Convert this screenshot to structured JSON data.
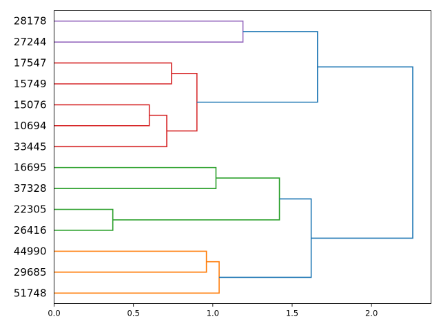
{
  "chart_data": {
    "type": "dendrogram",
    "orientation": "left",
    "xlim": [
      0,
      2.375
    ],
    "xticks": [
      0.0,
      0.5,
      1.0,
      1.5,
      2.0
    ],
    "xtick_labels": [
      "0.0",
      "0.5",
      "1.0",
      "1.5",
      "2.0"
    ],
    "leaves": [
      "28178",
      "27244",
      "17547",
      "15749",
      "15076",
      "10694",
      "33445",
      "16695",
      "37328",
      "22305",
      "26416",
      "44990",
      "29685",
      "51748"
    ],
    "colors": {
      "purple": "#9467bd",
      "red": "#d62728",
      "green": "#2ca02c",
      "orange": "#ff7f0e",
      "blue": "#1f77b4"
    },
    "merges": [
      {
        "id": "m1",
        "a": "L:28178",
        "b": "L:27244",
        "height": 1.19,
        "color": "purple"
      },
      {
        "id": "m2",
        "a": "L:17547",
        "b": "L:15749",
        "height": 0.74,
        "color": "red"
      },
      {
        "id": "m3",
        "a": "L:15076",
        "b": "L:10694",
        "height": 0.6,
        "color": "red"
      },
      {
        "id": "m4",
        "a": "m3",
        "b": "L:33445",
        "height": 0.71,
        "color": "red"
      },
      {
        "id": "m5",
        "a": "m2",
        "b": "m4",
        "height": 0.9,
        "color": "red"
      },
      {
        "id": "m6",
        "a": "m1",
        "b": "m5",
        "height": 1.66,
        "color": "blue"
      },
      {
        "id": "m7",
        "a": "L:16695",
        "b": "L:37328",
        "height": 1.02,
        "color": "green"
      },
      {
        "id": "m8",
        "a": "L:22305",
        "b": "L:26416",
        "height": 0.37,
        "color": "green"
      },
      {
        "id": "m9",
        "a": "m7",
        "b": "m8",
        "height": 1.42,
        "color": "green"
      },
      {
        "id": "m10",
        "a": "L:44990",
        "b": "L:29685",
        "height": 0.96,
        "color": "orange"
      },
      {
        "id": "m11",
        "a": "m10",
        "b": "L:51748",
        "height": 1.04,
        "color": "orange"
      },
      {
        "id": "m12",
        "a": "m9",
        "b": "m11",
        "height": 1.62,
        "color": "blue"
      },
      {
        "id": "m13",
        "a": "m6",
        "b": "m12",
        "height": 2.26,
        "color": "blue"
      }
    ]
  }
}
